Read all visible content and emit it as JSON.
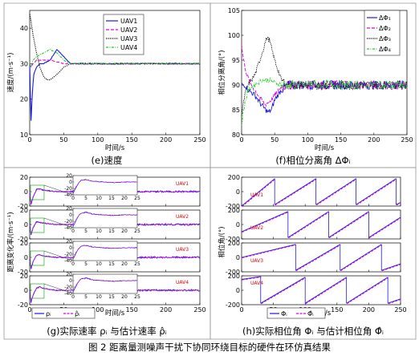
{
  "figure_caption": "图 2 距离量测噪声干扰下协同环绕目标的硬件在环仿真结果",
  "colors": {
    "uav1": "#1a1adc",
    "uav2": "#e000e0",
    "uav3": "#000000",
    "uav4": "#22cc22",
    "actual": "#1a1adc",
    "estimate": "#e000e0",
    "inset_box": "#22aa22",
    "uav_label": "#e00000"
  },
  "chart_data": [
    {
      "id": "e",
      "type": "line",
      "caption": "(e)速度",
      "xlabel": "时间/s",
      "ylabel": "速度/(m·s⁻¹)",
      "xlim": [
        0,
        250
      ],
      "ylim": [
        10,
        45
      ],
      "xticks": [
        0,
        50,
        100,
        150,
        200,
        250
      ],
      "yticks": [
        10,
        20,
        30,
        40
      ],
      "grid": false,
      "legend_position": "top-right",
      "series": [
        {
          "name": "UAV1",
          "x": [
            0,
            2,
            4,
            6,
            10,
            15,
            20,
            30,
            40,
            50,
            60,
            70,
            80,
            100,
            150,
            200,
            250
          ],
          "y": [
            30,
            14,
            22,
            27,
            29,
            30,
            30,
            31,
            34,
            32,
            30,
            30,
            30,
            30,
            30,
            30,
            30
          ]
        },
        {
          "name": "UAV2",
          "x": [
            0,
            2,
            5,
            10,
            20,
            30,
            40,
            50,
            60,
            70,
            80,
            100,
            150,
            200,
            250
          ],
          "y": [
            30,
            29,
            30,
            31,
            31,
            31,
            30.5,
            30,
            30,
            30,
            30,
            30,
            30,
            30,
            30
          ]
        },
        {
          "name": "UAV3",
          "x": [
            0,
            2,
            5,
            10,
            15,
            20,
            25,
            30,
            40,
            50,
            60,
            70,
            80,
            100,
            150,
            200,
            250
          ],
          "y": [
            44,
            42,
            38,
            33,
            29,
            26.5,
            25.5,
            25.5,
            27,
            29,
            30,
            30,
            30,
            30,
            30,
            30,
            30
          ]
        },
        {
          "name": "UAV4",
          "x": [
            0,
            2,
            5,
            10,
            20,
            30,
            40,
            50,
            60,
            70,
            80,
            100,
            150,
            200,
            250
          ],
          "y": [
            30,
            29,
            31,
            32,
            33,
            34,
            33,
            31,
            30,
            30,
            30,
            30,
            30,
            30,
            30
          ]
        }
      ]
    },
    {
      "id": "f",
      "type": "line",
      "caption": "(f)相位分离角 ΔΦᵢ",
      "xlabel": "时间/s",
      "ylabel": "相位分离角/(°)",
      "xlim": [
        0,
        250
      ],
      "ylim": [
        80,
        105
      ],
      "xticks": [
        0,
        50,
        100,
        150,
        200,
        250
      ],
      "yticks": [
        80,
        85,
        90,
        95,
        100,
        105
      ],
      "grid": false,
      "legend_position": "top-right",
      "series": [
        {
          "name": "ΔΦ₁",
          "x": [
            0,
            5,
            10,
            20,
            30,
            40,
            45,
            50,
            60,
            70,
            80,
            100,
            150,
            200,
            250
          ],
          "y": [
            90,
            90,
            89,
            88,
            86,
            84.5,
            85,
            87,
            89,
            90,
            90,
            90,
            90,
            90,
            90
          ]
        },
        {
          "name": "ΔΦ₂",
          "x": [
            0,
            3,
            8,
            15,
            25,
            35,
            45,
            50,
            60,
            70,
            80,
            100,
            150,
            200,
            250
          ],
          "y": [
            98,
            95,
            92,
            90,
            88,
            86,
            87,
            88,
            89.5,
            90,
            90,
            90,
            90,
            90,
            90
          ]
        },
        {
          "name": "ΔΦ₃",
          "x": [
            0,
            5,
            10,
            20,
            30,
            38,
            42,
            50,
            60,
            70,
            80,
            100,
            150,
            200,
            250
          ],
          "y": [
            84,
            88,
            90,
            92,
            96,
            99.5,
            99,
            95,
            91,
            90,
            90,
            90,
            90,
            90,
            90
          ]
        },
        {
          "name": "ΔΦ₄",
          "x": [
            0,
            3,
            6,
            10,
            20,
            30,
            40,
            50,
            60,
            80,
            100,
            150,
            200,
            250
          ],
          "y": [
            82,
            85,
            87,
            89,
            90,
            91,
            91,
            90.5,
            90,
            90,
            90,
            90,
            90,
            90
          ]
        }
      ]
    },
    {
      "id": "g",
      "type": "line",
      "caption": "(g)实际速率 ρᵢ 与估计速率 ρ̂ᵢ",
      "xlabel": "时间/s",
      "ylabel": "距离变化率/(m·s⁻¹)",
      "xlim": [
        0,
        250
      ],
      "ylim": [
        -20,
        20
      ],
      "xticks": [
        0,
        50,
        100,
        150,
        200,
        250
      ],
      "yticks": [
        -20,
        0,
        20
      ],
      "grid": false,
      "legend": [
        "ρᵢ",
        "ρ̂ᵢ"
      ],
      "legend_position": "bottom-left",
      "panels": [
        {
          "label": "UAV1",
          "inset_ylim": [
            -40,
            20
          ],
          "inset_yticks": [
            -40,
            -20,
            0,
            20
          ],
          "inset_xticks": [
            0,
            5,
            10,
            15,
            20,
            25
          ],
          "x": [
            0,
            2,
            5,
            10,
            15,
            20,
            30,
            40,
            50,
            70,
            100,
            150,
            200,
            250
          ],
          "y": [
            0,
            -18,
            -8,
            3,
            4,
            2,
            1,
            0,
            0,
            0,
            0,
            0,
            0,
            0
          ]
        },
        {
          "label": "UAV2",
          "inset_ylim": [
            -40,
            20
          ],
          "inset_yticks": [
            -40,
            -20,
            0,
            20
          ],
          "inset_xticks": [
            0,
            5,
            10,
            15,
            20,
            25
          ],
          "x": [
            0,
            2,
            5,
            10,
            15,
            20,
            30,
            40,
            50,
            70,
            100,
            150,
            200,
            250
          ],
          "y": [
            0,
            -15,
            -5,
            4,
            3,
            2,
            1,
            0,
            0,
            0,
            0,
            0,
            0,
            0
          ]
        },
        {
          "label": "UAV3",
          "inset_ylim": [
            -40,
            20
          ],
          "inset_yticks": [
            -40,
            -20,
            0,
            20
          ],
          "inset_xticks": [
            0,
            5,
            10,
            15,
            20,
            25
          ],
          "x": [
            0,
            2,
            5,
            10,
            15,
            20,
            30,
            40,
            50,
            70,
            100,
            150,
            200,
            250
          ],
          "y": [
            0,
            -16,
            -6,
            3,
            4,
            2,
            1,
            0,
            0,
            0,
            0,
            0,
            0,
            0
          ]
        },
        {
          "label": "UAV4",
          "inset_ylim": [
            -40,
            20
          ],
          "inset_yticks": [
            -40,
            -20,
            0,
            20
          ],
          "inset_xticks": [
            0,
            5,
            10,
            15,
            20,
            25
          ],
          "x": [
            0,
            2,
            5,
            10,
            15,
            20,
            30,
            40,
            50,
            70,
            100,
            150,
            200,
            250
          ],
          "y": [
            0,
            -17,
            -7,
            3,
            5,
            3,
            1,
            0,
            0,
            0,
            0,
            0,
            0,
            0
          ]
        }
      ]
    },
    {
      "id": "h",
      "type": "line",
      "caption": "(h)实际相位角 Φᵢ 与估计相位角 Φ̂ᵢ",
      "xlabel": "时间/s",
      "ylabel": "相位角/(°)",
      "xlim": [
        0,
        250
      ],
      "ylim": [
        -200,
        200
      ],
      "xticks": [
        0,
        50,
        100,
        150,
        200,
        250
      ],
      "yticks": [
        -200,
        0,
        200
      ],
      "grid": false,
      "legend": [
        "Φᵢ",
        "Φ̂ᵢ"
      ],
      "legend_position": "bottom-center",
      "panels": [
        {
          "label": "UAV1",
          "wraps": [
            {
              "x": 0,
              "y": -200
            },
            {
              "x": 52,
              "y": 180
            },
            {
              "x": 52,
              "y": -180
            },
            {
              "x": 117,
              "y": 180
            },
            {
              "x": 117,
              "y": -180
            },
            {
              "x": 180,
              "y": 180
            },
            {
              "x": 180,
              "y": -180
            },
            {
              "x": 243,
              "y": 180
            },
            {
              "x": 243,
              "y": -180
            },
            {
              "x": 250,
              "y": -150
            }
          ]
        },
        {
          "label": "UAV2",
          "wraps": [
            {
              "x": 0,
              "y": -100
            },
            {
              "x": 73,
              "y": 180
            },
            {
              "x": 73,
              "y": -180
            },
            {
              "x": 137,
              "y": 180
            },
            {
              "x": 137,
              "y": -180
            },
            {
              "x": 200,
              "y": 180
            },
            {
              "x": 200,
              "y": -180
            },
            {
              "x": 250,
              "y": 100
            }
          ]
        },
        {
          "label": "UAV3",
          "wraps": [
            {
              "x": 0,
              "y": 0
            },
            {
              "x": 85,
              "y": 180
            },
            {
              "x": 85,
              "y": -180
            },
            {
              "x": 155,
              "y": 180
            },
            {
              "x": 155,
              "y": -180
            },
            {
              "x": 220,
              "y": 180
            },
            {
              "x": 220,
              "y": -180
            },
            {
              "x": 250,
              "y": -90
            }
          ]
        },
        {
          "label": "UAV4",
          "wraps": [
            {
              "x": 0,
              "y": 150
            },
            {
              "x": 30,
              "y": 190
            },
            {
              "x": 30,
              "y": -180
            },
            {
              "x": 100,
              "y": 180
            },
            {
              "x": 100,
              "y": -180
            },
            {
              "x": 165,
              "y": 180
            },
            {
              "x": 165,
              "y": -180
            },
            {
              "x": 230,
              "y": 180
            },
            {
              "x": 230,
              "y": -180
            },
            {
              "x": 250,
              "y": -120
            }
          ]
        }
      ]
    }
  ]
}
